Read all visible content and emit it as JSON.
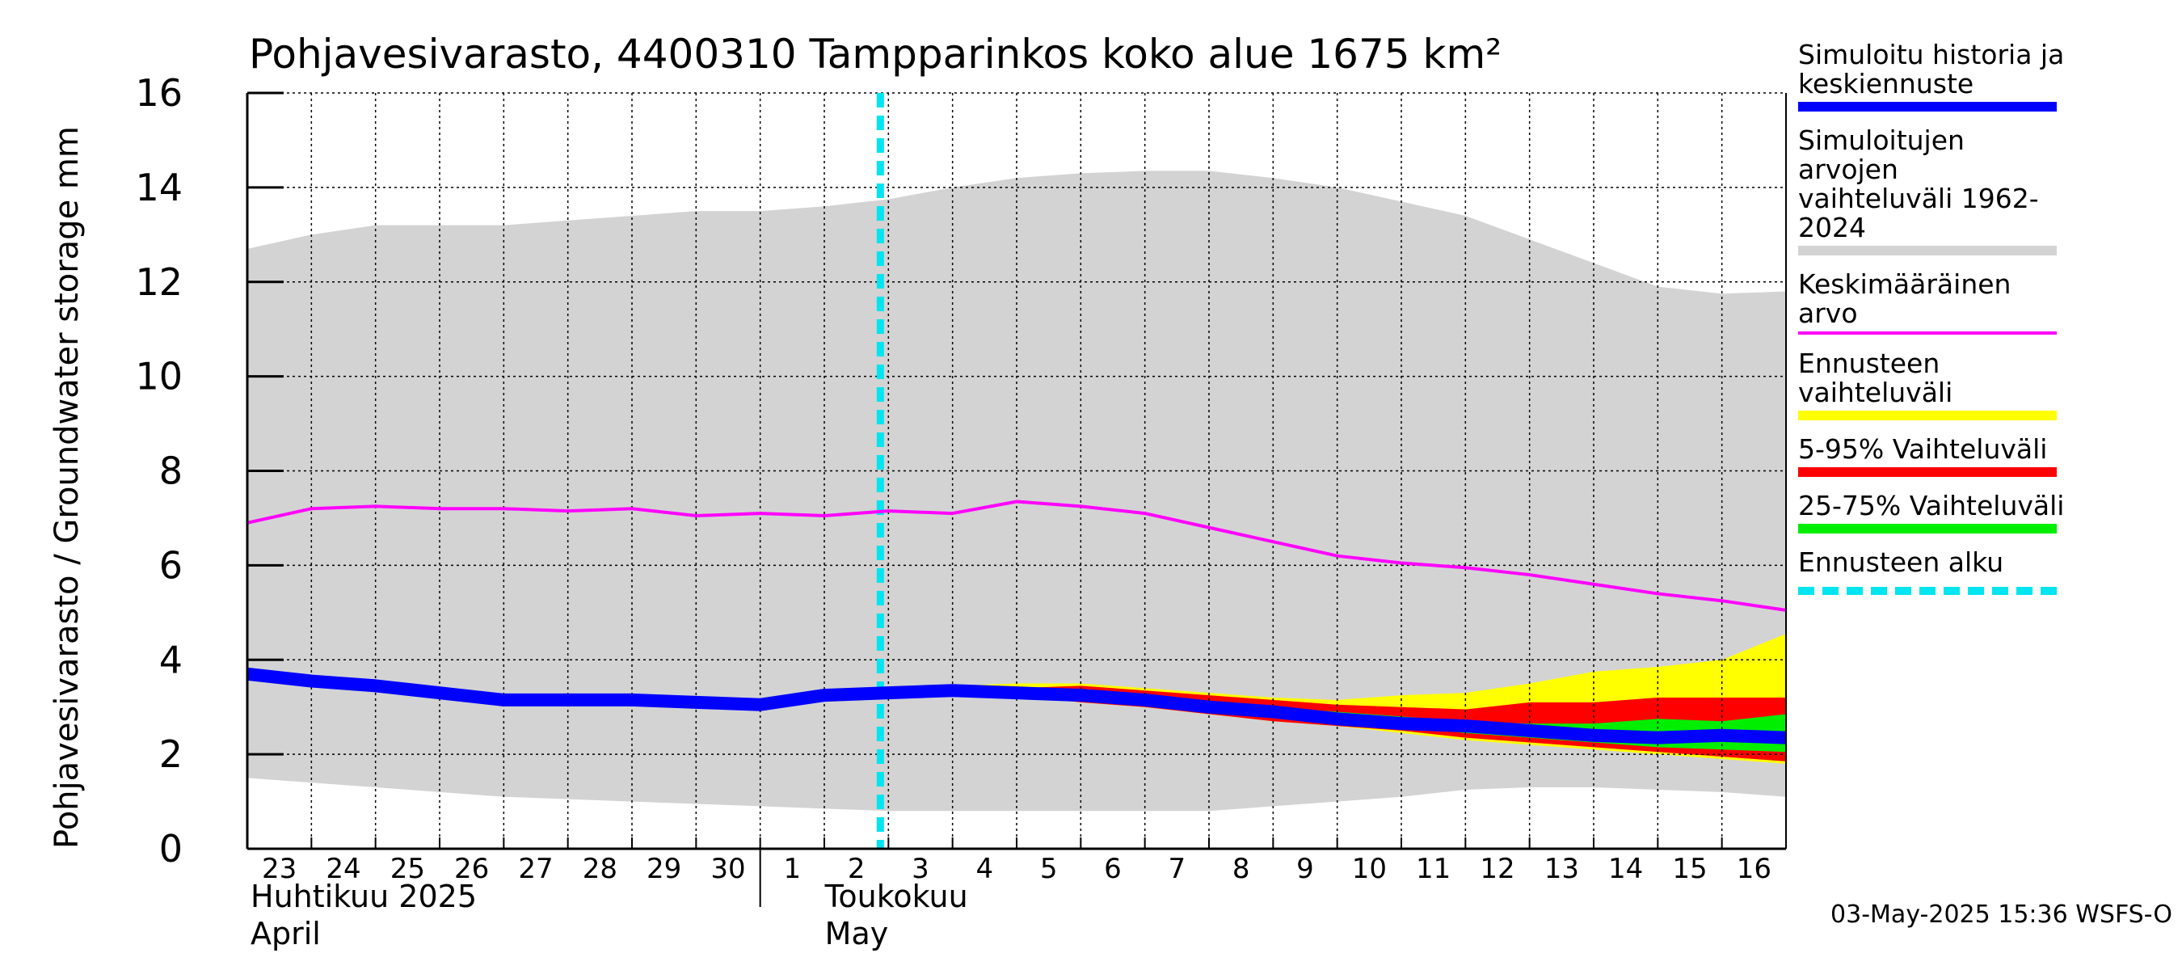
{
  "chart_data": {
    "type": "area",
    "title": "Pohjavesivarasto, 4400310 Tampparinkos koko alue 1675 km²",
    "ylabel": "Pohjavesivarasto / Groundwater storage   mm",
    "ylim": [
      0,
      16
    ],
    "yticks": [
      0,
      2,
      4,
      6,
      8,
      10,
      12,
      14,
      16
    ],
    "grid": true,
    "legend_position": "right",
    "x_dates": [
      "2025-04-23",
      "2025-04-24",
      "2025-04-25",
      "2025-04-26",
      "2025-04-27",
      "2025-04-28",
      "2025-04-29",
      "2025-04-30",
      "2025-05-01",
      "2025-05-02",
      "2025-05-03",
      "2025-05-04",
      "2025-05-05",
      "2025-05-06",
      "2025-05-07",
      "2025-05-08",
      "2025-05-09",
      "2025-05-10",
      "2025-05-11",
      "2025-05-12",
      "2025-05-13",
      "2025-05-14",
      "2025-05-15",
      "2025-05-16",
      "2025-05-17"
    ],
    "x_tick_labels": [
      "23",
      "24",
      "25",
      "26",
      "27",
      "28",
      "29",
      "30",
      "1",
      "2",
      "3",
      "4",
      "5",
      "6",
      "7",
      "8",
      "9",
      "10",
      "11",
      "12",
      "13",
      "14",
      "15",
      "16"
    ],
    "month_labels": [
      {
        "line1": "Huhtikuu  2025",
        "line2": "April"
      },
      {
        "line1": "Toukokuu",
        "line2": "May"
      }
    ],
    "forecast_start": "2025-05-03",
    "series": [
      {
        "name": "Simuloitujen arvojen vaihteluväli 1962-2024",
        "kind": "band",
        "color": "#d3d3d3",
        "x": [
          "2025-04-23",
          "2025-04-24",
          "2025-04-25",
          "2025-04-26",
          "2025-04-27",
          "2025-04-28",
          "2025-04-29",
          "2025-04-30",
          "2025-05-01",
          "2025-05-02",
          "2025-05-03",
          "2025-05-04",
          "2025-05-05",
          "2025-05-06",
          "2025-05-07",
          "2025-05-08",
          "2025-05-09",
          "2025-05-10",
          "2025-05-11",
          "2025-05-12",
          "2025-05-13",
          "2025-05-14",
          "2025-05-15",
          "2025-05-16",
          "2025-05-17"
        ],
        "upper": [
          12.7,
          13.0,
          13.2,
          13.2,
          13.2,
          13.3,
          13.4,
          13.5,
          13.5,
          13.6,
          13.75,
          14.0,
          14.2,
          14.3,
          14.35,
          14.35,
          14.2,
          14.0,
          13.7,
          13.4,
          12.9,
          12.4,
          11.9,
          11.75,
          11.8
        ],
        "lower": [
          1.5,
          1.4,
          1.3,
          1.2,
          1.1,
          1.05,
          1.0,
          0.95,
          0.9,
          0.85,
          0.8,
          0.8,
          0.8,
          0.8,
          0.8,
          0.8,
          0.9,
          1.0,
          1.1,
          1.25,
          1.3,
          1.3,
          1.25,
          1.2,
          1.1
        ]
      },
      {
        "name": "Keskimääräinen arvo",
        "kind": "line",
        "color": "#ff00ff",
        "x": [
          "2025-04-23",
          "2025-04-24",
          "2025-04-25",
          "2025-04-26",
          "2025-04-27",
          "2025-04-28",
          "2025-04-29",
          "2025-04-30",
          "2025-05-01",
          "2025-05-02",
          "2025-05-03",
          "2025-05-04",
          "2025-05-05",
          "2025-05-06",
          "2025-05-07",
          "2025-05-08",
          "2025-05-09",
          "2025-05-10",
          "2025-05-11",
          "2025-05-12",
          "2025-05-13",
          "2025-05-14",
          "2025-05-15",
          "2025-05-16",
          "2025-05-17"
        ],
        "values": [
          6.9,
          7.2,
          7.25,
          7.2,
          7.2,
          7.15,
          7.2,
          7.05,
          7.1,
          7.05,
          7.15,
          7.1,
          7.35,
          7.25,
          7.1,
          6.8,
          6.5,
          6.2,
          6.05,
          5.95,
          5.8,
          5.6,
          5.4,
          5.25,
          5.05
        ]
      },
      {
        "name": "Ennusteen vaihteluväli",
        "kind": "band",
        "color": "#ffff00",
        "x": [
          "2025-05-04",
          "2025-05-05",
          "2025-05-06",
          "2025-05-07",
          "2025-05-08",
          "2025-05-09",
          "2025-05-10",
          "2025-05-11",
          "2025-05-12",
          "2025-05-13",
          "2025-05-14",
          "2025-05-15",
          "2025-05-16",
          "2025-05-17"
        ],
        "upper": [
          3.45,
          3.5,
          3.5,
          3.4,
          3.3,
          3.2,
          3.15,
          3.25,
          3.3,
          3.5,
          3.75,
          3.85,
          4.0,
          4.55
        ],
        "lower": [
          3.35,
          3.25,
          3.1,
          3.0,
          2.85,
          2.7,
          2.6,
          2.45,
          2.3,
          2.2,
          2.1,
          2.0,
          1.9,
          1.8
        ]
      },
      {
        "name": "5-95% Vaihteluväli",
        "kind": "band",
        "color": "#ff0000",
        "x": [
          "2025-05-04",
          "2025-05-05",
          "2025-05-06",
          "2025-05-07",
          "2025-05-08",
          "2025-05-09",
          "2025-05-10",
          "2025-05-11",
          "2025-05-12",
          "2025-05-13",
          "2025-05-14",
          "2025-05-15",
          "2025-05-16",
          "2025-05-17"
        ],
        "upper": [
          3.4,
          3.4,
          3.45,
          3.35,
          3.25,
          3.15,
          3.05,
          3.0,
          2.95,
          3.1,
          3.1,
          3.2,
          3.2,
          3.2
        ],
        "lower": [
          3.35,
          3.25,
          3.1,
          3.0,
          2.85,
          2.7,
          2.6,
          2.5,
          2.35,
          2.25,
          2.15,
          2.05,
          1.95,
          1.85
        ]
      },
      {
        "name": "25-75% Vaihteluväli",
        "kind": "band",
        "color": "#00ee00",
        "x": [
          "2025-05-04",
          "2025-05-05",
          "2025-05-06",
          "2025-05-07",
          "2025-05-08",
          "2025-05-09",
          "2025-05-10",
          "2025-05-11",
          "2025-05-12",
          "2025-05-13",
          "2025-05-14",
          "2025-05-15",
          "2025-05-16",
          "2025-05-17"
        ],
        "upper": [
          3.38,
          3.35,
          3.3,
          3.2,
          3.1,
          3.0,
          2.9,
          2.8,
          2.7,
          2.65,
          2.65,
          2.75,
          2.7,
          2.85
        ],
        "lower": [
          3.35,
          3.28,
          3.15,
          3.05,
          2.9,
          2.8,
          2.7,
          2.6,
          2.45,
          2.35,
          2.25,
          2.15,
          2.1,
          2.05
        ]
      },
      {
        "name": "Simuloitu historia ja keskiennuste",
        "kind": "line",
        "color": "#0000ff",
        "x": [
          "2025-04-23",
          "2025-04-24",
          "2025-04-25",
          "2025-04-26",
          "2025-04-27",
          "2025-04-28",
          "2025-04-29",
          "2025-04-30",
          "2025-05-01",
          "2025-05-02",
          "2025-05-03",
          "2025-05-04",
          "2025-05-05",
          "2025-05-06",
          "2025-05-07",
          "2025-05-08",
          "2025-05-09",
          "2025-05-10",
          "2025-05-11",
          "2025-05-12",
          "2025-05-13",
          "2025-05-14",
          "2025-05-15",
          "2025-05-16",
          "2025-05-17"
        ],
        "values": [
          3.7,
          3.55,
          3.45,
          3.3,
          3.15,
          3.15,
          3.15,
          3.1,
          3.05,
          3.25,
          3.3,
          3.35,
          3.3,
          3.25,
          3.15,
          3.0,
          2.9,
          2.75,
          2.65,
          2.6,
          2.5,
          2.4,
          2.35,
          2.4,
          2.35
        ]
      }
    ],
    "legend": [
      {
        "label": "Simuloitu historia ja\nkeskiennuste",
        "color": "#0000ff",
        "style": "solid"
      },
      {
        "label": "Simuloitujen arvojen\nvaihteluväli 1962-2024",
        "color": "#d3d3d3",
        "style": "solid"
      },
      {
        "label": "Keskimääräinen arvo",
        "color": "#ff00ff",
        "style": "thin"
      },
      {
        "label": "Ennusteen vaihteluväli",
        "color": "#ffff00",
        "style": "solid"
      },
      {
        "label": "5-95% Vaihteluväli",
        "color": "#ff0000",
        "style": "solid"
      },
      {
        "label": "25-75% Vaihteluväli",
        "color": "#00ee00",
        "style": "solid"
      },
      {
        "label": "Ennusteen alku",
        "color": "#00e5ef",
        "style": "dashed"
      }
    ]
  },
  "footer": {
    "timestamp": "03-May-2025 15:36 WSFS-O"
  }
}
